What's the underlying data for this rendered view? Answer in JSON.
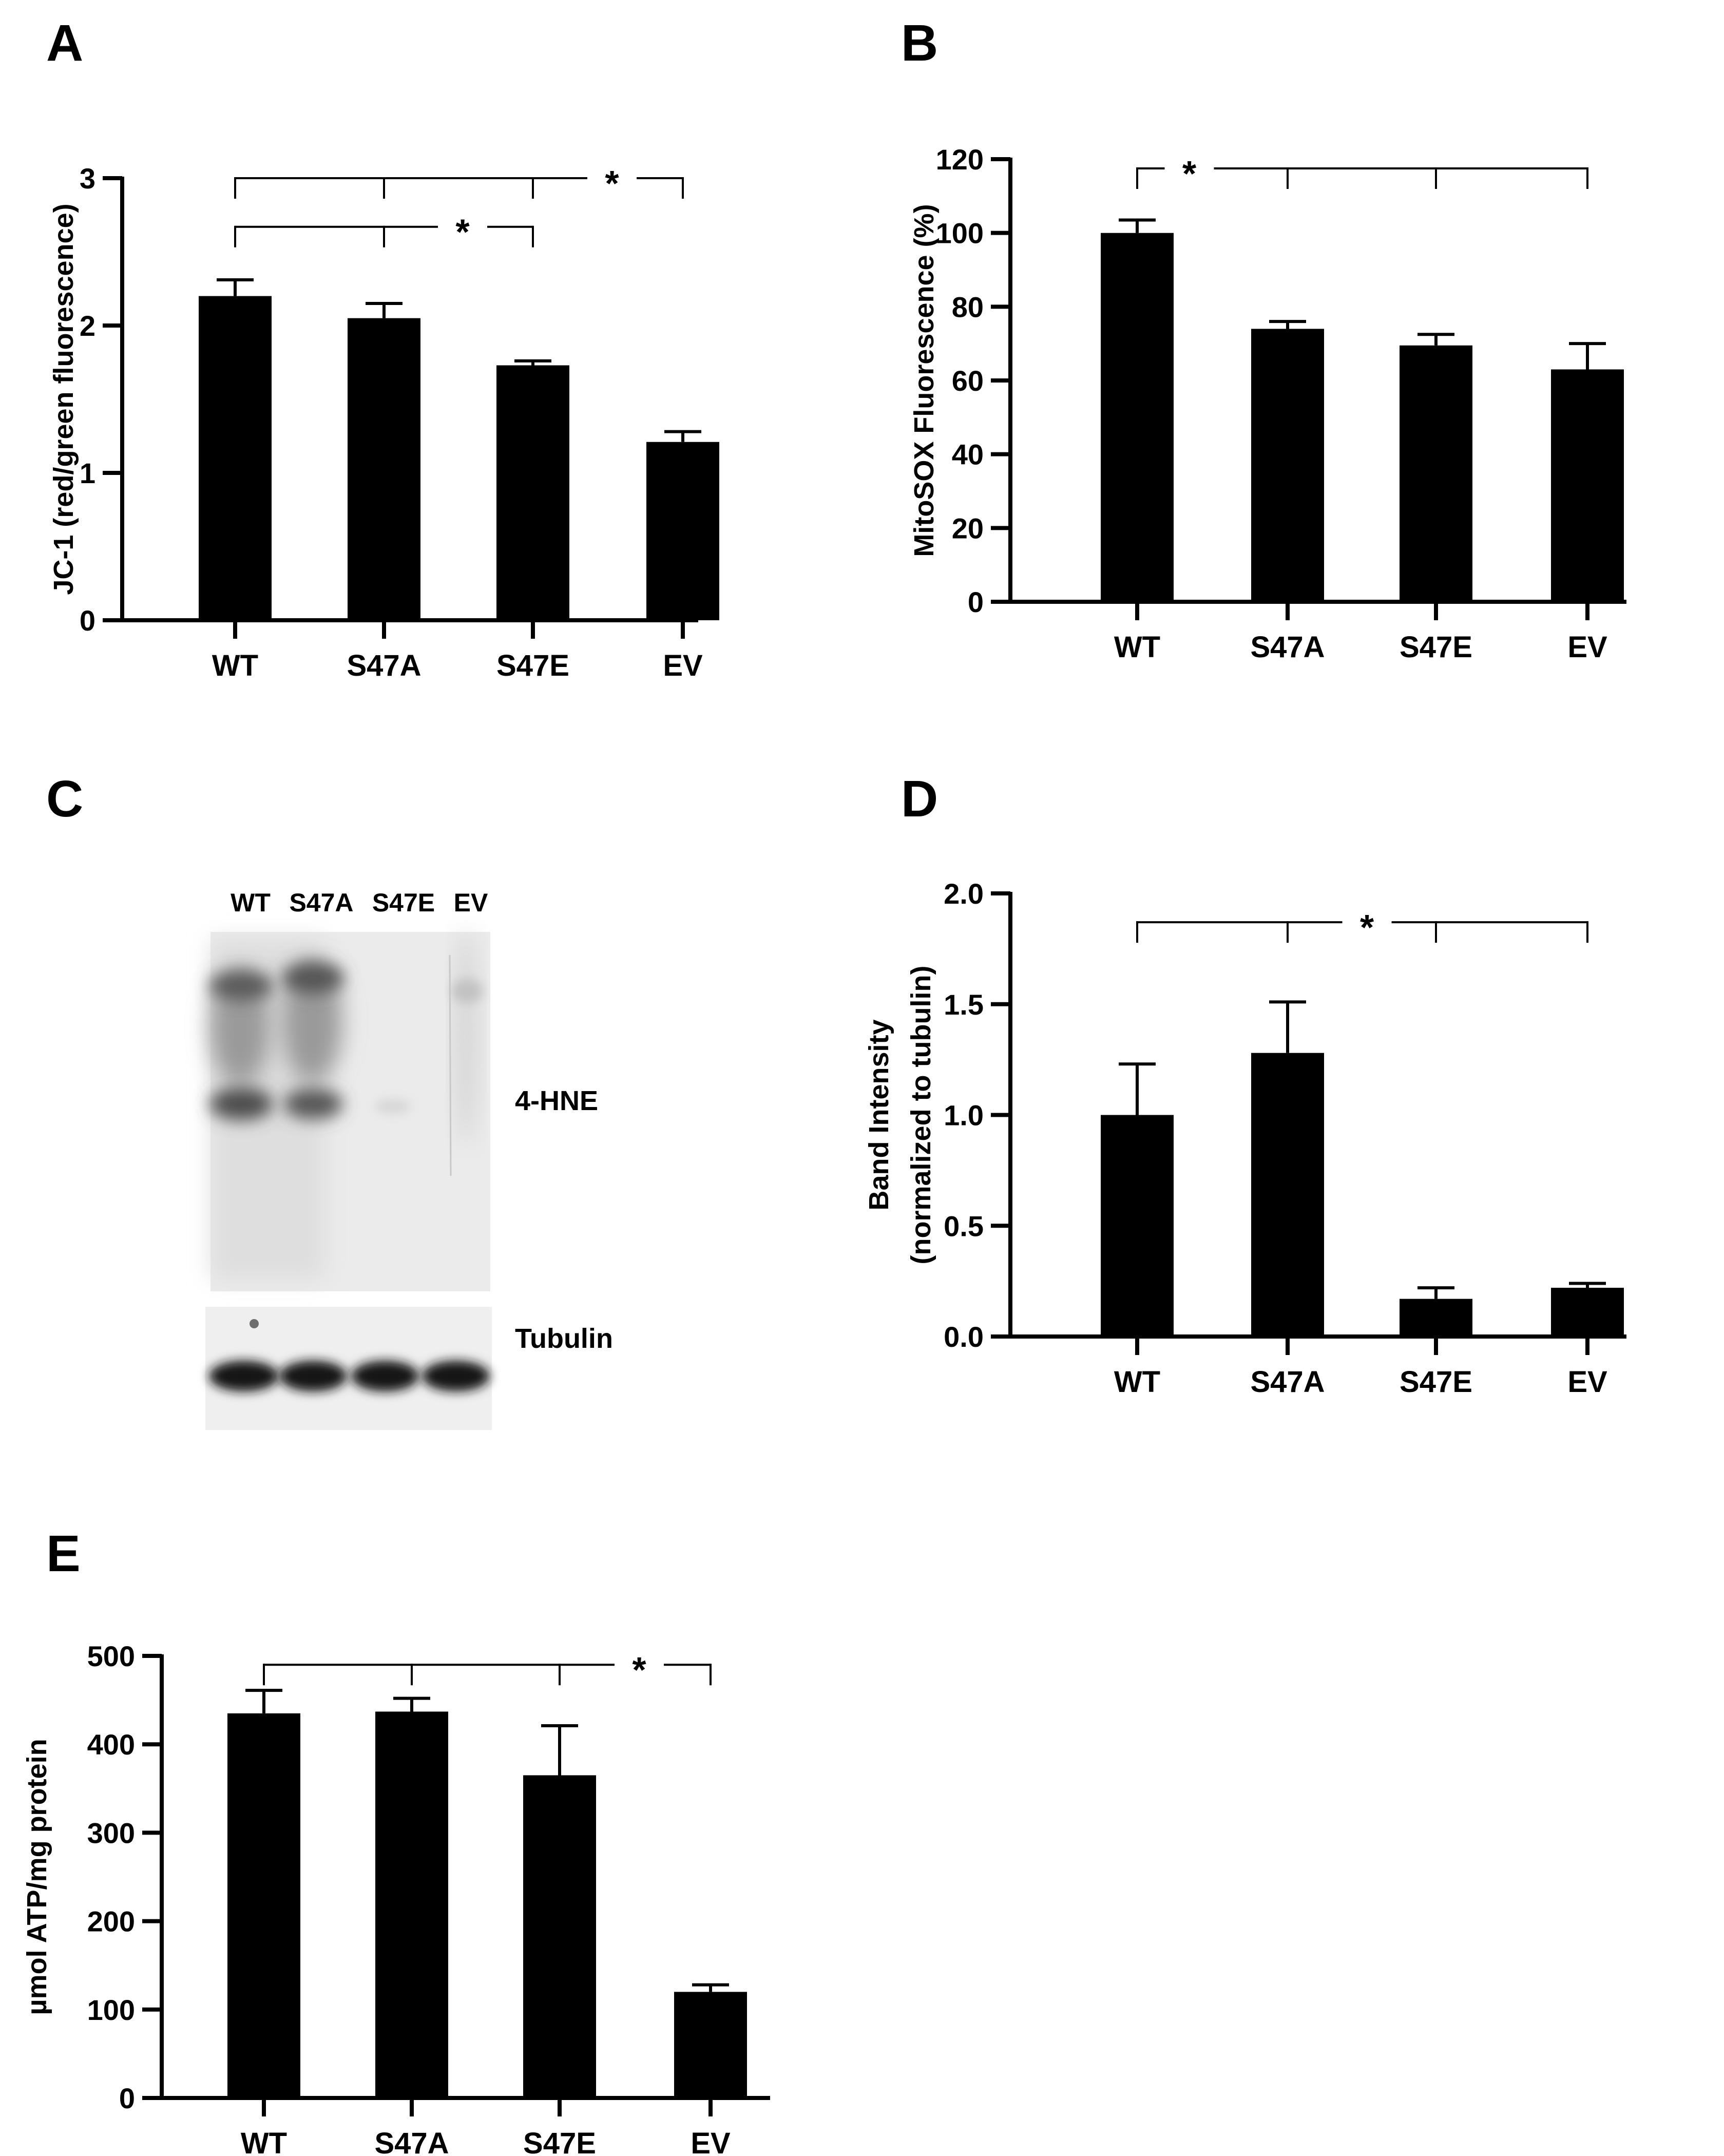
{
  "blot": {
    "letter": "C",
    "lanes": [
      "WT",
      "S47A",
      "S47E",
      "EV"
    ],
    "band_labels": [
      "4-HNE",
      "Tubulin"
    ]
  },
  "chart_data": [
    {
      "letter": "A",
      "type": "bar",
      "categories": [
        "WT",
        "S47A",
        "S47E",
        "EV"
      ],
      "values": [
        2.2,
        2.05,
        1.73,
        1.21
      ],
      "errors": [
        0.11,
        0.1,
        0.03,
        0.07
      ],
      "ylabel": "JC-1 (red/green fluorescence)",
      "ylim": [
        0,
        3
      ],
      "yticks": [
        0,
        1,
        2,
        3
      ],
      "ytick_labels": [
        "0",
        "1",
        "2",
        "3"
      ],
      "grid": false,
      "significance": [
        {
          "ref": "WT",
          "targets": [
            "S47A",
            "S47E",
            "EV"
          ],
          "level": 3.0,
          "label": "*"
        },
        {
          "ref": "WT",
          "targets": [
            "S47A",
            "S47E"
          ],
          "level": 2.67,
          "label": "*"
        }
      ]
    },
    {
      "letter": "B",
      "type": "bar",
      "categories": [
        "WT",
        "S47A",
        "S47E",
        "EV"
      ],
      "values": [
        100,
        74,
        69.5,
        63
      ],
      "errors": [
        3.5,
        2,
        3,
        7
      ],
      "ylabel": "MitoSOX Fluorescence (%)",
      "ylim": [
        0,
        120
      ],
      "yticks": [
        0,
        20,
        40,
        60,
        80,
        100,
        120
      ],
      "ytick_labels": [
        "0",
        "20",
        "40",
        "60",
        "80",
        "100",
        "120"
      ],
      "grid": false,
      "significance": [
        {
          "ref": "WT",
          "targets": [
            "S47A",
            "S47E",
            "EV"
          ],
          "level": 117.5,
          "label": "*"
        }
      ]
    },
    {
      "letter": "D",
      "type": "bar",
      "categories": [
        "WT",
        "S47A",
        "S47E",
        "EV"
      ],
      "values": [
        1.0,
        1.28,
        0.17,
        0.22
      ],
      "errors": [
        0.23,
        0.23,
        0.05,
        0.02
      ],
      "ylabel": "Band Intensity",
      "ylabel2": "(normalized to tubulin)",
      "ylim": [
        0,
        2
      ],
      "yticks": [
        0,
        0.5,
        1,
        1.5,
        2
      ],
      "ytick_labels": [
        "0.0",
        "0.5",
        "1.0",
        "1.5",
        "2.0"
      ],
      "grid": false,
      "significance": [
        {
          "ref": "WT",
          "targets": [
            "S47A",
            "S47E",
            "EV"
          ],
          "level": 1.87,
          "label": "*"
        }
      ]
    },
    {
      "letter": "E",
      "type": "bar",
      "categories": [
        "WT",
        "S47A",
        "S47E",
        "EV"
      ],
      "values": [
        435,
        437,
        365,
        120
      ],
      "errors": [
        26,
        15,
        56,
        8
      ],
      "ylabel": "µmol ATP/mg protein",
      "ylim": [
        0,
        500
      ],
      "yticks": [
        0,
        100,
        200,
        300,
        400,
        500
      ],
      "ytick_labels": [
        "0",
        "100",
        "200",
        "300",
        "400",
        "500"
      ],
      "grid": false,
      "significance": [
        {
          "ref": "WT",
          "targets": [
            "S47A",
            "S47E",
            "EV"
          ],
          "level": 490,
          "label": "*"
        }
      ]
    }
  ]
}
